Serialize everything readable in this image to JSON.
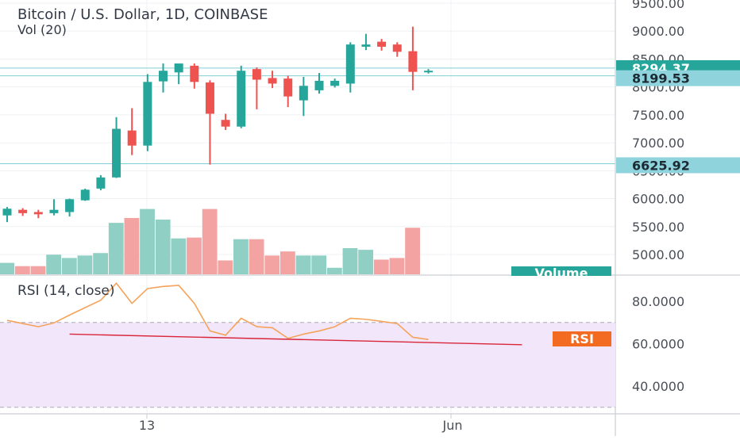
{
  "colors": {
    "up": "#26a69a",
    "down": "#ef5350",
    "volume_up": "#8fcfc4",
    "volume_down": "#f4a3a3",
    "rsi_line": "#f5a35a",
    "rsi_band": "#f2e6fb",
    "trendline": "#d9263a",
    "grid": "#eef1f4",
    "axis_line": "#c9ced4",
    "price_line_teal": "#26a69a",
    "price_line_light": "#7fcfd6",
    "rsi_badge": "#f26b21"
  },
  "header": {
    "title": "Bitcoin / U.S. Dollar, 1D, COINBASE",
    "volume_indicator": "Vol (20)",
    "rsi_indicator": "RSI (14, close)"
  },
  "badges": {
    "last_price": "8294.37",
    "level_2": "8199.53",
    "level_3": "6625.92",
    "volume": "Volume",
    "rsi": "RSI"
  },
  "chart_data": [
    {
      "type": "candlestick",
      "title": "Bitcoin / U.S. Dollar, 1D, COINBASE",
      "x_tick_labels": [
        "13",
        "Jun"
      ],
      "y_ticks": [
        5000,
        5500,
        6000,
        6500,
        7000,
        7500,
        8000,
        8500,
        9000,
        9500
      ],
      "y_tick_labels": [
        "5000.00",
        "5500.00",
        "6000.00",
        "6500.00",
        "7000.00",
        "7500.00",
        "8000.00",
        "8500.00",
        "9000.00",
        "9500.00"
      ],
      "ylim": [
        4600,
        9600
      ],
      "price_levels": [
        8294.37,
        8199.53,
        6625.92
      ],
      "candles": [
        {
          "o": 5700,
          "h": 5850,
          "l": 5580,
          "c": 5820
        },
        {
          "o": 5800,
          "h": 5830,
          "l": 5690,
          "c": 5740
        },
        {
          "o": 5760,
          "h": 5800,
          "l": 5650,
          "c": 5720
        },
        {
          "o": 5740,
          "h": 5990,
          "l": 5700,
          "c": 5800
        },
        {
          "o": 5760,
          "h": 6000,
          "l": 5680,
          "c": 5990
        },
        {
          "o": 5970,
          "h": 6180,
          "l": 5960,
          "c": 6160
        },
        {
          "o": 6180,
          "h": 6420,
          "l": 6150,
          "c": 6380
        },
        {
          "o": 6380,
          "h": 7460,
          "l": 6370,
          "c": 7250
        },
        {
          "o": 7220,
          "h": 7620,
          "l": 6780,
          "c": 6950
        },
        {
          "o": 6950,
          "h": 8230,
          "l": 6850,
          "c": 8090
        },
        {
          "o": 8100,
          "h": 8420,
          "l": 7900,
          "c": 8290
        },
        {
          "o": 8260,
          "h": 8400,
          "l": 8050,
          "c": 8420
        },
        {
          "o": 8380,
          "h": 8420,
          "l": 7970,
          "c": 8090
        },
        {
          "o": 8080,
          "h": 8120,
          "l": 6610,
          "c": 7520
        },
        {
          "o": 7410,
          "h": 7520,
          "l": 7230,
          "c": 7290
        },
        {
          "o": 7290,
          "h": 8380,
          "l": 7260,
          "c": 8290
        },
        {
          "o": 8320,
          "h": 8350,
          "l": 7600,
          "c": 8130
        },
        {
          "o": 8160,
          "h": 8290,
          "l": 7980,
          "c": 8060
        },
        {
          "o": 8150,
          "h": 8200,
          "l": 7640,
          "c": 7830
        },
        {
          "o": 7760,
          "h": 8180,
          "l": 7480,
          "c": 8020
        },
        {
          "o": 7940,
          "h": 8250,
          "l": 7880,
          "c": 8110
        },
        {
          "o": 8020,
          "h": 8150,
          "l": 7990,
          "c": 8110
        },
        {
          "o": 8060,
          "h": 8800,
          "l": 7900,
          "c": 8760
        },
        {
          "o": 8720,
          "h": 8950,
          "l": 8660,
          "c": 8760
        },
        {
          "o": 8810,
          "h": 8860,
          "l": 8650,
          "c": 8720
        },
        {
          "o": 8760,
          "h": 8800,
          "l": 8540,
          "c": 8630
        },
        {
          "o": 8640,
          "h": 9080,
          "l": 7940,
          "c": 8270
        },
        {
          "o": 8270,
          "h": 8320,
          "l": 8240,
          "c": 8290
        }
      ]
    },
    {
      "type": "bar",
      "title": "Vol (20)",
      "values": [
        1.4,
        1.0,
        1.0,
        2.4,
        2.0,
        2.3,
        2.6,
        6.3,
        6.9,
        8.0,
        6.7,
        4.4,
        4.5,
        8.0,
        1.7,
        4.3,
        4.3,
        2.3,
        2.8,
        2.3,
        2.3,
        0.8,
        3.2,
        3.0,
        1.8,
        2.0,
        5.7,
        0.0
      ],
      "up": [
        true,
        false,
        false,
        true,
        true,
        true,
        true,
        true,
        false,
        true,
        true,
        true,
        false,
        false,
        false,
        true,
        false,
        false,
        false,
        true,
        true,
        true,
        true,
        true,
        false,
        false,
        false,
        true
      ]
    },
    {
      "type": "line",
      "title": "RSI (14, close)",
      "y_ticks": [
        40,
        60,
        80
      ],
      "y_tick_labels": [
        "40.0000",
        "60.0000",
        "80.0000"
      ],
      "ylim": [
        28,
        93
      ],
      "band": [
        30,
        70
      ],
      "values": [
        71,
        69.5,
        68,
        69.8,
        73.5,
        77,
        80.5,
        88.5,
        79,
        86,
        87,
        87.5,
        79,
        66,
        64,
        72,
        68,
        67.5,
        62.5,
        64.5,
        66,
        68,
        72,
        71.5,
        70.5,
        69.5,
        63,
        62
      ],
      "trendline": {
        "from_index": 4,
        "from_value": 64.5,
        "to_index": 33,
        "to_value": 59.5
      }
    }
  ]
}
